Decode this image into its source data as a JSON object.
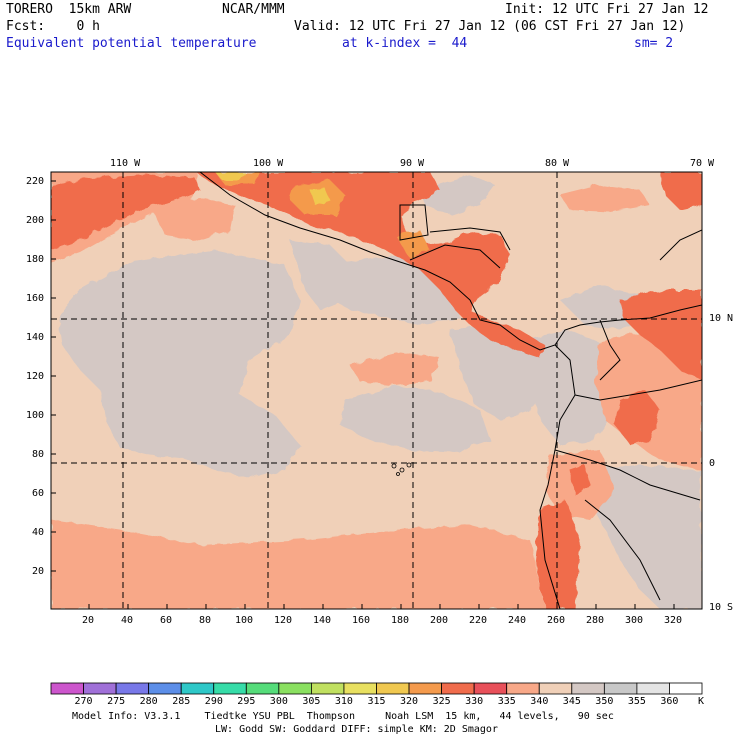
{
  "header": {
    "model": "TORERO  15km ARW",
    "center": "NCAR/MMM",
    "init": "Init: 12 UTC Fri 27 Jan 12",
    "fcst": "Fcst:    0 h",
    "valid": "Valid: 12 UTC Fri 27 Jan 12 (06 CST Fri 27 Jan 12)",
    "field": "Equivalent potential temperature",
    "level": "at k-index =  44",
    "smooth": "sm= 2"
  },
  "map": {
    "lon_labels": [
      "110 W",
      "100 W",
      "90 W",
      "80 W",
      "70 W"
    ],
    "lat_labels": [
      "10 N",
      "0",
      "10 S"
    ],
    "x_ticks": [
      "20",
      "40",
      "60",
      "80",
      "100",
      "120",
      "140",
      "160",
      "180",
      "200",
      "220",
      "240",
      "260",
      "280",
      "300",
      "320"
    ],
    "y_ticks": [
      "220",
      "200",
      "180",
      "160",
      "140",
      "120",
      "100",
      "80",
      "60",
      "40",
      "20"
    ]
  },
  "colorbar": {
    "levels": [
      "270",
      "275",
      "280",
      "285",
      "290",
      "295",
      "300",
      "305",
      "310",
      "315",
      "320",
      "325",
      "330",
      "335",
      "340",
      "345",
      "350",
      "355",
      "360"
    ],
    "unit": "K",
    "colors": [
      "#cc55cc",
      "#a070d8",
      "#7878e8",
      "#5c8ee8",
      "#2ec8c8",
      "#36dca8",
      "#55dc7a",
      "#8ae060",
      "#c0e060",
      "#e8e060",
      "#f0c850",
      "#f49a4c",
      "#f06c4c",
      "#e8505a",
      "#f8a888",
      "#f0d0b8",
      "#d4c8c4",
      "#c8c8c8",
      "#e4e4e4",
      "#ffffff"
    ]
  },
  "footer": {
    "line1": "Model Info: V3.3.1    Tiedtke YSU PBL  Thompson     Noah LSM  15 km,   44 levels,   90 sec",
    "line2": "LW: Godd SW: Goddard DIFF: simple KM: 2D Smagor"
  }
}
